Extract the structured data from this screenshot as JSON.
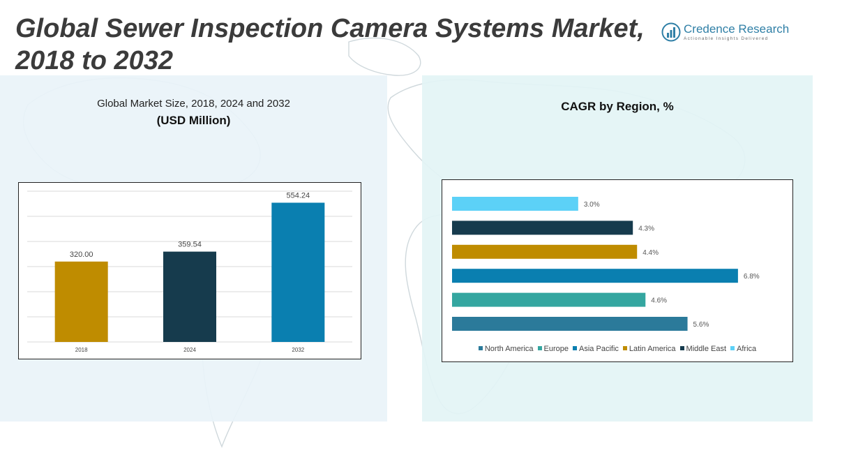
{
  "header": {
    "title_line1": "Global Sewer Inspection Camera Systems Market,",
    "title_line2": "2018 to 2032"
  },
  "logo": {
    "name": "Credence Research",
    "tagline": "Actionable Insights Delivered"
  },
  "left_panel": {
    "subtitle": "Global Market Size, 2018, 2024 and 2032",
    "unit": "(USD Million)"
  },
  "right_panel": {
    "title": "CAGR by Region, %"
  },
  "chart_data": [
    {
      "type": "bar",
      "categories": [
        "2018",
        "2024",
        "2032"
      ],
      "values": [
        320.0,
        359.54,
        554.24
      ],
      "value_labels": [
        "320.00",
        "359.54",
        "554.24"
      ],
      "colors": [
        "#bf8c00",
        "#163b4d",
        "#0a7fb0"
      ],
      "ylim": [
        0,
        600
      ],
      "grid": true
    },
    {
      "type": "bar",
      "orientation": "horizontal",
      "categories": [
        "Africa",
        "Middle East",
        "Latin America",
        "Asia Pacific",
        "Europe",
        "North America"
      ],
      "values": [
        3.0,
        4.3,
        4.4,
        6.8,
        4.6,
        5.6
      ],
      "value_labels": [
        "3.0%",
        "4.3%",
        "4.4%",
        "6.8%",
        "4.6%",
        "5.6%"
      ],
      "colors": [
        "#5cd1f7",
        "#163b4d",
        "#bf8c00",
        "#0a7fb0",
        "#34a6a0",
        "#2b7a9a"
      ],
      "xlim": [
        0,
        7.2
      ],
      "legend_order": [
        "North America",
        "Europe",
        "Asia Pacific",
        "Latin America",
        "Middle East",
        "Africa"
      ],
      "legend_position": "bottom"
    }
  ]
}
